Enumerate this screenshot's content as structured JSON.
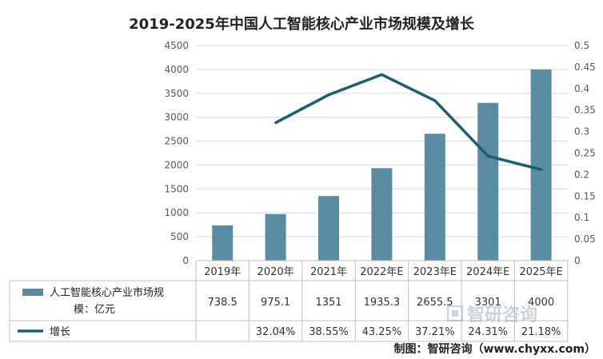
{
  "chart_data": {
    "type": "bar",
    "title": "2019-2025年中国人工智能核心产业市场规模及增长",
    "categories": [
      "2019年",
      "2020年",
      "2021年",
      "2022年E",
      "2023年E",
      "2024年E",
      "2025年E"
    ],
    "series": [
      {
        "name": "人工智能核心产业市场规模：亿元",
        "type": "bar",
        "axis": "left",
        "color": "#5b8ba3",
        "values": [
          738.5,
          975.1,
          1351,
          1935.3,
          2655.5,
          3301,
          4000
        ],
        "labels": [
          "738.5",
          "975.1",
          "1351",
          "1935.3",
          "2655.5",
          "3301",
          "4000"
        ]
      },
      {
        "name": "增长",
        "type": "line",
        "axis": "right",
        "color": "#1d5d73",
        "values": [
          null,
          0.3204,
          0.3855,
          0.4325,
          0.3721,
          0.2431,
          0.2118
        ],
        "labels": [
          "",
          "32.04%",
          "38.55%",
          "43.25%",
          "37.21%",
          "24.31%",
          "21.18%"
        ]
      }
    ],
    "y_left": {
      "min": 0,
      "max": 4500,
      "ticks": [
        "0",
        "500",
        "1000",
        "1500",
        "2000",
        "2500",
        "3000",
        "3500",
        "4000",
        "4500"
      ]
    },
    "y_right": {
      "min": 0,
      "max": 0.5,
      "ticks": [
        "0",
        "0.05",
        "0.1",
        "0.15",
        "0.2",
        "0.25",
        "0.3",
        "0.35",
        "0.4",
        "0.45",
        "0.5"
      ]
    },
    "grid": true,
    "legend": "data-table",
    "table": true,
    "source": "制图：智研咨询（www.chyxx.com）",
    "watermark": "智研咨询"
  }
}
